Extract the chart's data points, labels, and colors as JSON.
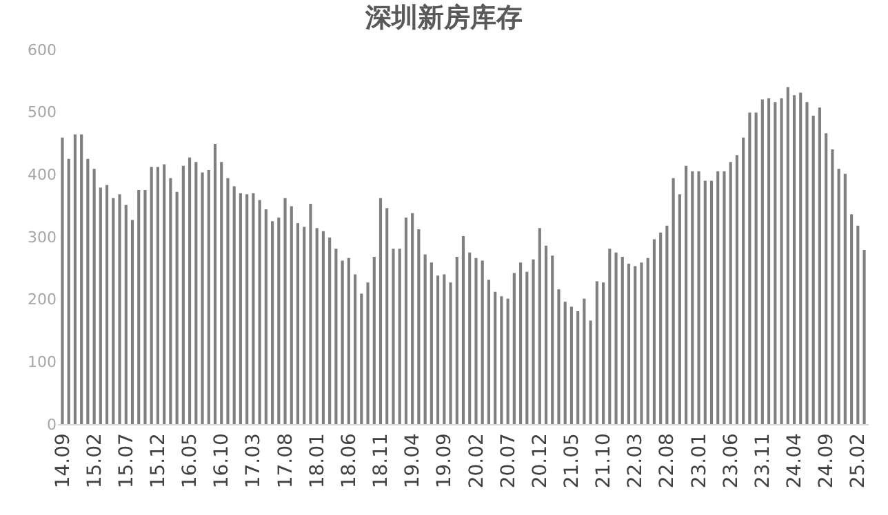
{
  "chart_data": {
    "type": "bar",
    "title": "深圳新房库存",
    "categories": [
      "14.09",
      null,
      null,
      null,
      null,
      "15.02",
      null,
      null,
      null,
      null,
      "15.07",
      null,
      null,
      null,
      null,
      "15.12",
      null,
      null,
      null,
      null,
      "16.05",
      null,
      null,
      null,
      null,
      "16.10",
      null,
      null,
      null,
      null,
      "17.03",
      null,
      null,
      null,
      null,
      "17.08",
      null,
      null,
      null,
      null,
      "18.01",
      null,
      null,
      null,
      null,
      "18.06",
      null,
      null,
      null,
      null,
      "18.11",
      null,
      null,
      null,
      null,
      "19.04",
      null,
      null,
      null,
      null,
      "19.09",
      null,
      null,
      null,
      null,
      "20.02",
      null,
      null,
      null,
      null,
      "20.07",
      null,
      null,
      null,
      null,
      "20.12",
      null,
      null,
      null,
      null,
      "21.05",
      null,
      null,
      null,
      null,
      "21.10",
      null,
      null,
      null,
      null,
      "22.03",
      null,
      null,
      null,
      null,
      "22.08",
      null,
      null,
      null,
      null,
      "23.01",
      null,
      null,
      null,
      null,
      "23.06",
      null,
      null,
      null,
      null,
      "23.11",
      null,
      null,
      null,
      null,
      "24.04",
      null,
      null,
      null,
      null,
      "24.09",
      null,
      null,
      null,
      null,
      "25.02",
      null
    ],
    "values": [
      459,
      425,
      464,
      464,
      425,
      409,
      379,
      383,
      362,
      368,
      351,
      327,
      375,
      375,
      412,
      412,
      416,
      394,
      372,
      414,
      427,
      420,
      403,
      407,
      449,
      420,
      394,
      381,
      370,
      368,
      370,
      359,
      344,
      325,
      331,
      362,
      349,
      322,
      316,
      353,
      314,
      309,
      299,
      281,
      262,
      266,
      240,
      209,
      227,
      268,
      362,
      346,
      281,
      281,
      331,
      338,
      312,
      272,
      259,
      238,
      240,
      227,
      268,
      301,
      275,
      266,
      262,
      231,
      212,
      205,
      201,
      242,
      259,
      244,
      264,
      314,
      286,
      270,
      216,
      196,
      188,
      181,
      201,
      166,
      229,
      227,
      281,
      275,
      268,
      257,
      253,
      259,
      266,
      296,
      307,
      318,
      394,
      368,
      414,
      405,
      405,
      390,
      390,
      405,
      405,
      420,
      431,
      459,
      499,
      499,
      520,
      522,
      516,
      522,
      540,
      527,
      531,
      516,
      494,
      507,
      466,
      440,
      409,
      401,
      336,
      318,
      279
    ],
    "color": "#7f7f7f",
    "ylim": [
      0,
      600
    ],
    "yticks": [
      0,
      100,
      200,
      300,
      400,
      500,
      600
    ]
  }
}
